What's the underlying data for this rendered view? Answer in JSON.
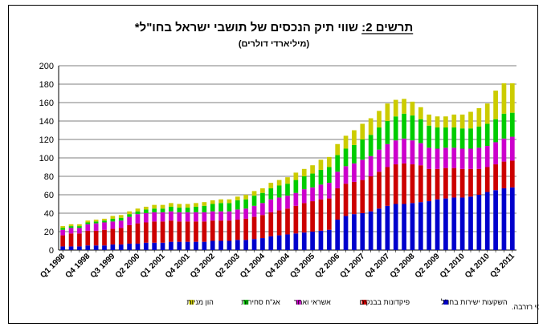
{
  "chart_data": {
    "type": "bar",
    "stacked": true,
    "title": "תרשים 2: שווי תיק הנכסים של תושבי ישראל בחו\"ל*",
    "title_underlined_part": "תרשים 2:",
    "subtitle": "(מיליארדי דולרים)",
    "note": "*לא כולל נכסי רזרבה.",
    "ylim": [
      0,
      200
    ],
    "yticks": [
      0,
      20,
      40,
      60,
      80,
      100,
      120,
      140,
      160,
      180,
      200
    ],
    "grid": true,
    "legend_position": "bottom",
    "categories": [
      "Q1 1998",
      "Q2 1998",
      "Q3 1998",
      "Q4 1998",
      "Q1 1999",
      "Q2 1999",
      "Q3 1999",
      "Q4 1999",
      "Q1 2000",
      "Q2 2000",
      "Q3 2000",
      "Q4 2000",
      "Q1 2001",
      "Q2 2001",
      "Q3 2001",
      "Q4 2001",
      "Q1 2002",
      "Q2 2002",
      "Q3 2002",
      "Q4 2002",
      "Q1 2003",
      "Q2 2003",
      "Q3 2003",
      "Q4 2003",
      "Q1 2004",
      "Q2 2004",
      "Q3 2004",
      "Q4 2004",
      "Q1 2005",
      "Q2 2005",
      "Q3 2005",
      "Q4 2005",
      "Q1 2006",
      "Q2 2006",
      "Q3 2006",
      "Q4 2006",
      "Q1 2007",
      "Q2 2007",
      "Q3 2007",
      "Q4 2007",
      "Q1 2008",
      "Q2 2008",
      "Q3 2008",
      "Q4 2008",
      "Q1 2009",
      "Q2 2009",
      "Q3 2009",
      "Q4 2009",
      "Q1 2010",
      "Q2 2010",
      "Q3 2010",
      "Q4 2010",
      "Q1 2011",
      "Q2 2011",
      "Q3 2011"
    ],
    "xtick_labels": [
      "Q1 1998",
      "Q4 1998",
      "Q3 1999",
      "Q2 2000",
      "Q1 2001",
      "Q4 2001",
      "Q3 2002",
      "Q2 2003",
      "Q1 2004",
      "Q4 2004",
      "Q3 2005",
      "Q2 2006",
      "Q1 2007",
      "Q4 2007",
      "Q3 2008",
      "Q2 2009",
      "Q1 2010",
      "Q4 2010",
      "Q3 2011"
    ],
    "xtick_every": 3,
    "series": [
      {
        "name": "השקעות ישירות בחו\"ל",
        "color": "#0000cc",
        "values": [
          4,
          4,
          4,
          5,
          5,
          5,
          6,
          6,
          7,
          7,
          8,
          8,
          8,
          9,
          9,
          9,
          9,
          9,
          10,
          10,
          10,
          11,
          11,
          12,
          13,
          15,
          16,
          17,
          18,
          19,
          20,
          21,
          22,
          33,
          37,
          39,
          40,
          42,
          45,
          48,
          50,
          50,
          51,
          52,
          53,
          55,
          56,
          57,
          57,
          58,
          60,
          63,
          65,
          67,
          68
        ]
      },
      {
        "name": "פיקדונות בבנקים",
        "color": "#cc0000",
        "values": [
          12,
          14,
          14,
          16,
          16,
          17,
          17,
          18,
          20,
          22,
          22,
          23,
          23,
          23,
          22,
          22,
          22,
          22,
          22,
          22,
          22,
          22,
          23,
          24,
          25,
          26,
          27,
          28,
          30,
          32,
          33,
          34,
          34,
          34,
          35,
          35,
          36,
          38,
          40,
          42,
          43,
          44,
          42,
          40,
          35,
          33,
          33,
          32,
          31,
          30,
          28,
          27,
          28,
          29,
          29
        ]
      },
      {
        "name": "אשראי ואחר",
        "color": "#cc00cc",
        "values": [
          6,
          6,
          6,
          7,
          8,
          8,
          8,
          8,
          9,
          10,
          10,
          10,
          10,
          10,
          10,
          10,
          10,
          10,
          10,
          10,
          10,
          11,
          11,
          12,
          13,
          14,
          14,
          14,
          14,
          15,
          15,
          16,
          17,
          18,
          19,
          20,
          22,
          22,
          24,
          25,
          26,
          27,
          26,
          24,
          23,
          22,
          22,
          22,
          22,
          22,
          23,
          23,
          24,
          25,
          26
        ]
      },
      {
        "name": "אג\"ח סחירות",
        "color": "#00cc00",
        "values": [
          2,
          2,
          2,
          2,
          2,
          2,
          3,
          3,
          3,
          3,
          4,
          4,
          4,
          5,
          5,
          5,
          6,
          7,
          8,
          9,
          9,
          10,
          10,
          11,
          11,
          12,
          13,
          13,
          14,
          14,
          15,
          16,
          17,
          18,
          19,
          20,
          22,
          23,
          24,
          25,
          26,
          27,
          27,
          26,
          24,
          23,
          22,
          22,
          22,
          22,
          23,
          24,
          25,
          27,
          26
        ]
      },
      {
        "name": "הון מניות",
        "color": "#cccc00",
        "values": [
          2,
          2,
          2,
          2,
          2,
          2,
          3,
          3,
          3,
          3,
          3,
          4,
          4,
          4,
          4,
          4,
          4,
          4,
          4,
          4,
          4,
          4,
          5,
          5,
          5,
          6,
          6,
          7,
          8,
          8,
          9,
          11,
          11,
          12,
          14,
          16,
          17,
          18,
          18,
          19,
          18,
          16,
          15,
          13,
          12,
          12,
          12,
          14,
          15,
          18,
          20,
          22,
          31,
          33,
          32
        ]
      }
    ]
  }
}
